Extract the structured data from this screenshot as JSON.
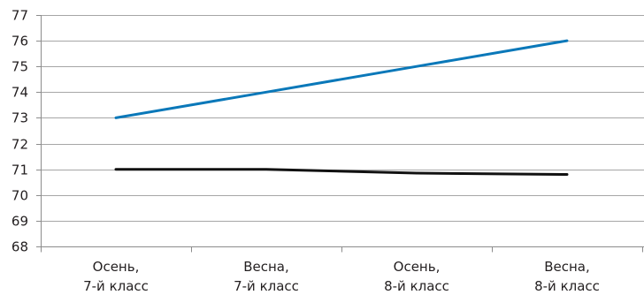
{
  "chart_data": {
    "type": "line",
    "title": "",
    "xlabel": "",
    "ylabel": "",
    "categories": [
      [
        "Осень,",
        "7-й класс"
      ],
      [
        "Весна,",
        "7-й класс"
      ],
      [
        "Осень,",
        "8-й класс"
      ],
      [
        "Весна,",
        "8-й класс"
      ]
    ],
    "ylim": [
      68,
      77
    ],
    "yticks": [
      68,
      69,
      70,
      71,
      72,
      73,
      74,
      75,
      76,
      77
    ],
    "grid": true,
    "legend": "none",
    "series": [
      {
        "values": [
          73,
          74,
          75,
          76
        ],
        "color": "#0a78b9"
      },
      {
        "values": [
          71,
          71,
          70.85,
          70.8
        ],
        "color": "#111111"
      }
    ]
  }
}
